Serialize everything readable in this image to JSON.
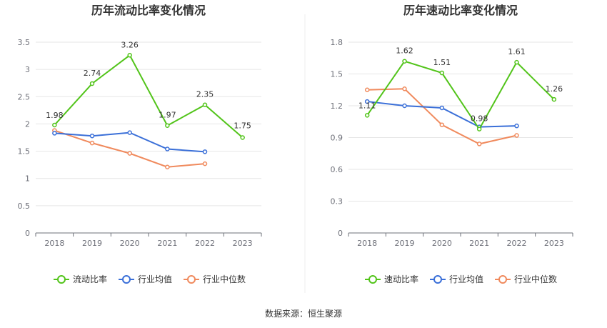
{
  "chart_data": [
    {
      "type": "line",
      "title": "历年流动比率变化情况",
      "categories": [
        "2018",
        "2019",
        "2020",
        "2021",
        "2022",
        "2023"
      ],
      "ylim": [
        0,
        3.5
      ],
      "yticks": [
        "0",
        "0.5",
        "1",
        "1.5",
        "2",
        "2.5",
        "3",
        "3.5"
      ],
      "grid": true,
      "legend_position": "bottom",
      "series": [
        {
          "name": "流动比率",
          "color": "#52c41a",
          "values": [
            1.98,
            2.74,
            3.26,
            1.97,
            2.35,
            1.75
          ],
          "labels": [
            "1.98",
            "2.74",
            "3.26",
            "1.97",
            "2.35",
            "1.75"
          ]
        },
        {
          "name": "行业均值",
          "color": "#3a6fd8",
          "values": [
            1.83,
            1.78,
            1.84,
            1.54,
            1.49,
            null
          ]
        },
        {
          "name": "行业中位数",
          "color": "#f08a5d",
          "values": [
            1.88,
            1.65,
            1.46,
            1.21,
            1.27,
            null
          ]
        }
      ]
    },
    {
      "type": "line",
      "title": "历年速动比率变化情况",
      "categories": [
        "2018",
        "2019",
        "2020",
        "2021",
        "2022",
        "2023"
      ],
      "ylim": [
        0,
        1.8
      ],
      "yticks": [
        "0",
        "0.3",
        "0.6",
        "0.9",
        "1.2",
        "1.5",
        "1.8"
      ],
      "grid": true,
      "legend_position": "bottom",
      "series": [
        {
          "name": "速动比率",
          "color": "#52c41a",
          "values": [
            1.11,
            1.62,
            1.51,
            0.98,
            1.61,
            1.26
          ],
          "labels": [
            "1.11",
            "1.62",
            "1.51",
            "0.98",
            "1.61",
            "1.26"
          ]
        },
        {
          "name": "行业均值",
          "color": "#3a6fd8",
          "values": [
            1.24,
            1.2,
            1.18,
            1.0,
            1.01,
            null
          ]
        },
        {
          "name": "行业中位数",
          "color": "#f08a5d",
          "values": [
            1.35,
            1.36,
            1.02,
            0.84,
            0.92,
            null
          ]
        }
      ]
    }
  ],
  "source_text": "数据来源：恒生聚源"
}
